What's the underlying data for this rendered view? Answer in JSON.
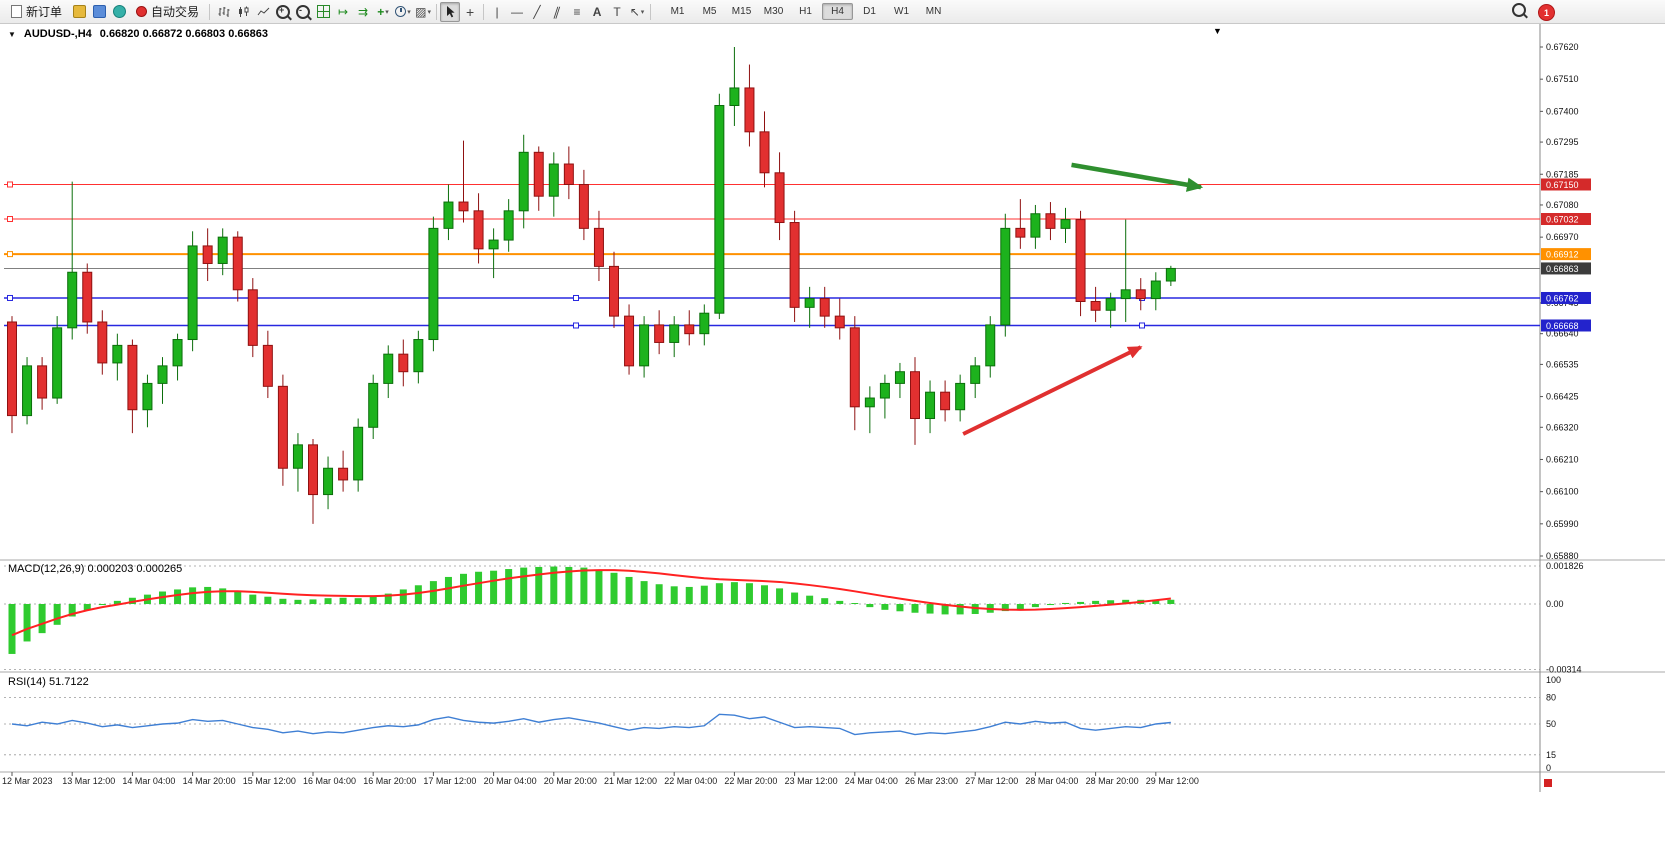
{
  "toolbar": {
    "new_order_label": "新订单",
    "auto_trading_label": "自动交易",
    "timeframes": [
      "M1",
      "M5",
      "M15",
      "M30",
      "H1",
      "H4",
      "D1",
      "W1",
      "MN"
    ],
    "active_timeframe": "H4",
    "notification_count": "1"
  },
  "chart": {
    "header_symbol": "AUDUSD-,H4",
    "header_ohlc": "0.66820 0.66872 0.66803 0.66863",
    "macd_label": "MACD(12,26,9) 0.000203 0.000265",
    "rsi_label": "RSI(14) 51.7122",
    "axis_marker_color": "#d42222"
  },
  "chart_data": {
    "type": "candlestick",
    "symbol": "AUDUSD-",
    "timeframe": "H4",
    "ylim": [
      0.6588,
      0.6762
    ],
    "colors": {
      "up": "#1db21d",
      "up_stroke": "#0b6e0b",
      "down": "#e23030",
      "down_stroke": "#8f1111",
      "macd_hist": "#2fcb2f",
      "macd_signal": "#ff2222",
      "rsi_line": "#3f7fd4",
      "current_line": "#808080"
    },
    "candles": [
      [
        0.6668,
        0.667,
        0.663,
        0.6636
      ],
      [
        0.6636,
        0.6656,
        0.6633,
        0.6653
      ],
      [
        0.6653,
        0.6656,
        0.6638,
        0.6642
      ],
      [
        0.6642,
        0.667,
        0.664,
        0.6666
      ],
      [
        0.6666,
        0.6716,
        0.6662,
        0.6685
      ],
      [
        0.6685,
        0.6688,
        0.6664,
        0.6668
      ],
      [
        0.6668,
        0.6672,
        0.665,
        0.6654
      ],
      [
        0.6654,
        0.6664,
        0.6648,
        0.666
      ],
      [
        0.666,
        0.6662,
        0.663,
        0.6638
      ],
      [
        0.6638,
        0.665,
        0.6632,
        0.6647
      ],
      [
        0.6647,
        0.6656,
        0.664,
        0.6653
      ],
      [
        0.6653,
        0.6664,
        0.6648,
        0.6662
      ],
      [
        0.6662,
        0.6699,
        0.6658,
        0.6694
      ],
      [
        0.6694,
        0.67,
        0.6682,
        0.6688
      ],
      [
        0.6688,
        0.67,
        0.6684,
        0.6697
      ],
      [
        0.6697,
        0.6699,
        0.6675,
        0.6679
      ],
      [
        0.6679,
        0.6683,
        0.6656,
        0.666
      ],
      [
        0.666,
        0.6665,
        0.6642,
        0.6646
      ],
      [
        0.6646,
        0.665,
        0.6612,
        0.6618
      ],
      [
        0.6618,
        0.663,
        0.661,
        0.6626
      ],
      [
        0.6626,
        0.6628,
        0.6599,
        0.6609
      ],
      [
        0.6609,
        0.6622,
        0.6604,
        0.6618
      ],
      [
        0.6618,
        0.6624,
        0.661,
        0.6614
      ],
      [
        0.6614,
        0.6635,
        0.661,
        0.6632
      ],
      [
        0.6632,
        0.665,
        0.6628,
        0.6647
      ],
      [
        0.6647,
        0.666,
        0.6642,
        0.6657
      ],
      [
        0.6657,
        0.6662,
        0.6646,
        0.6651
      ],
      [
        0.6651,
        0.6665,
        0.6647,
        0.6662
      ],
      [
        0.6662,
        0.6704,
        0.6658,
        0.67
      ],
      [
        0.67,
        0.6715,
        0.6696,
        0.6709
      ],
      [
        0.6709,
        0.673,
        0.6702,
        0.6706
      ],
      [
        0.6706,
        0.6712,
        0.6688,
        0.6693
      ],
      [
        0.6693,
        0.67,
        0.6683,
        0.6696
      ],
      [
        0.6696,
        0.671,
        0.6692,
        0.6706
      ],
      [
        0.6706,
        0.6732,
        0.67,
        0.6726
      ],
      [
        0.6726,
        0.6728,
        0.6706,
        0.6711
      ],
      [
        0.6711,
        0.6726,
        0.6704,
        0.6722
      ],
      [
        0.6722,
        0.6728,
        0.671,
        0.6715
      ],
      [
        0.6715,
        0.672,
        0.6696,
        0.67
      ],
      [
        0.67,
        0.6706,
        0.6682,
        0.6687
      ],
      [
        0.6687,
        0.6692,
        0.6666,
        0.667
      ],
      [
        0.667,
        0.6674,
        0.665,
        0.6653
      ],
      [
        0.6653,
        0.667,
        0.6649,
        0.6667
      ],
      [
        0.6667,
        0.6672,
        0.6657,
        0.6661
      ],
      [
        0.6661,
        0.667,
        0.6656,
        0.6667
      ],
      [
        0.6667,
        0.6672,
        0.666,
        0.6664
      ],
      [
        0.6664,
        0.6674,
        0.666,
        0.6671
      ],
      [
        0.6671,
        0.6746,
        0.6669,
        0.6742
      ],
      [
        0.6742,
        0.6762,
        0.6735,
        0.6748
      ],
      [
        0.6748,
        0.6756,
        0.6728,
        0.6733
      ],
      [
        0.6733,
        0.674,
        0.6714,
        0.6719
      ],
      [
        0.6719,
        0.6726,
        0.6696,
        0.6702
      ],
      [
        0.6702,
        0.6706,
        0.6668,
        0.6673
      ],
      [
        0.6673,
        0.668,
        0.6666,
        0.6676
      ],
      [
        0.6676,
        0.668,
        0.6666,
        0.667
      ],
      [
        0.667,
        0.6676,
        0.6662,
        0.6666
      ],
      [
        0.6666,
        0.667,
        0.6631,
        0.6639
      ],
      [
        0.6639,
        0.6646,
        0.663,
        0.6642
      ],
      [
        0.6642,
        0.665,
        0.6635,
        0.6647
      ],
      [
        0.6647,
        0.6654,
        0.6642,
        0.6651
      ],
      [
        0.6651,
        0.6656,
        0.6626,
        0.6635
      ],
      [
        0.6635,
        0.6648,
        0.663,
        0.6644
      ],
      [
        0.6644,
        0.6648,
        0.6634,
        0.6638
      ],
      [
        0.6638,
        0.665,
        0.6634,
        0.6647
      ],
      [
        0.6647,
        0.6656,
        0.6642,
        0.6653
      ],
      [
        0.6653,
        0.667,
        0.6649,
        0.6667
      ],
      [
        0.6667,
        0.6705,
        0.6663,
        0.67
      ],
      [
        0.67,
        0.671,
        0.6693,
        0.6697
      ],
      [
        0.6697,
        0.6708,
        0.6693,
        0.6705
      ],
      [
        0.6705,
        0.6709,
        0.6696,
        0.67
      ],
      [
        0.67,
        0.6707,
        0.6695,
        0.6703
      ],
      [
        0.6703,
        0.6706,
        0.667,
        0.6675
      ],
      [
        0.6675,
        0.668,
        0.6668,
        0.6672
      ],
      [
        0.6672,
        0.6678,
        0.6666,
        0.6676
      ],
      [
        0.6676,
        0.6703,
        0.6668,
        0.6679
      ],
      [
        0.6679,
        0.6683,
        0.6672,
        0.6676
      ],
      [
        0.6676,
        0.6685,
        0.6672,
        0.6682
      ],
      [
        0.6682,
        0.66872,
        0.66803,
        0.66863
      ]
    ],
    "x_labels": [
      "12 Mar 2023",
      "13 Mar 12:00",
      "14 Mar 04:00",
      "14 Mar 20:00",
      "15 Mar 12:00",
      "16 Mar 04:00",
      "16 Mar 20:00",
      "17 Mar 12:00",
      "20 Mar 04:00",
      "20 Mar 20:00",
      "21 Mar 12:00",
      "22 Mar 04:00",
      "22 Mar 20:00",
      "23 Mar 12:00",
      "24 Mar 04:00",
      "26 Mar 23:00",
      "27 Mar 12:00",
      "28 Mar 04:00",
      "28 Mar 20:00",
      "29 Mar 12:00"
    ],
    "y_ticks": [
      0.6762,
      0.6751,
      0.674,
      0.67295,
      0.67185,
      0.6708,
      0.6697,
      0.66745,
      0.6664,
      0.66535,
      0.66425,
      0.6632,
      0.6621,
      0.661,
      0.6599,
      0.6588
    ],
    "hlines": [
      {
        "price": 0.6715,
        "color": "#ff3030",
        "width": 1,
        "badge": "0.67150",
        "badge_color": "#d42a2a",
        "handles": false
      },
      {
        "price": 0.67032,
        "color": "#ff3030",
        "width": 1,
        "badge": "0.67032",
        "badge_color": "#d42a2a",
        "handles": false
      },
      {
        "price": 0.66912,
        "color": "#ff9100",
        "width": 2,
        "badge": "0.66912",
        "badge_color": "#ff9100",
        "handles": false
      },
      {
        "price": 0.66762,
        "color": "#2828e0",
        "width": 1.5,
        "badge": "0.66762",
        "badge_color": "#2323cc",
        "handles": true
      },
      {
        "price": 0.66668,
        "color": "#2828e0",
        "width": 1.5,
        "badge": "0.66668",
        "badge_color": "#2323cc",
        "handles": true
      }
    ],
    "current_price": {
      "price": 0.66863,
      "badge": "0.66863",
      "badge_color": "#3c3c3c"
    },
    "arrows": [
      {
        "name": "green-arrow",
        "color": "#2f8f2f",
        "width": 4.5,
        "from": {
          "i": 70.4,
          "p": 0.67217
        },
        "to": {
          "i": 79.0,
          "p": 0.67141
        }
      },
      {
        "name": "red-arrow",
        "color": "#e03030",
        "width": 4,
        "from": {
          "i": 63.2,
          "p": 0.66297
        },
        "to": {
          "i": 75.0,
          "p": 0.66594
        }
      }
    ],
    "macd": {
      "params": "12,26,9",
      "values": [
        0.000203,
        0.000265
      ],
      "scale": [
        {
          "label": "0.001826",
          "v": 0.001826
        },
        {
          "label": "0.00",
          "v": 0
        },
        {
          "label": "-0.00314",
          "v": -0.00314
        }
      ],
      "histogram": [
        -0.0024,
        -0.0018,
        -0.0014,
        -0.001,
        -0.0006,
        -0.0003,
        -5e-05,
        0.00015,
        0.0003,
        0.00045,
        0.0006,
        0.0007,
        0.0008,
        0.00082,
        0.00075,
        0.0006,
        0.00045,
        0.00035,
        0.00025,
        0.0002,
        0.00022,
        0.00028,
        0.0003,
        0.00028,
        0.00035,
        0.0005,
        0.0007,
        0.0009,
        0.0011,
        0.0013,
        0.00145,
        0.00155,
        0.0016,
        0.00168,
        0.00175,
        0.00178,
        0.0018,
        0.00178,
        0.00175,
        0.00165,
        0.0015,
        0.0013,
        0.0011,
        0.00095,
        0.00085,
        0.00082,
        0.00088,
        0.001,
        0.00105,
        0.001,
        0.0009,
        0.00075,
        0.00055,
        0.0004,
        0.00028,
        0.00015,
        0,
        -0.00015,
        -0.00028,
        -0.00035,
        -0.00042,
        -0.00046,
        -0.0005,
        -0.0005,
        -0.00048,
        -0.00042,
        -0.00034,
        -0.00025,
        -0.00015,
        -5e-05,
        5e-05,
        0.0001,
        0.00015,
        0.00018,
        0.0002,
        0.0002,
        0.0002,
        0.000203
      ],
      "signal": [
        -0.0015,
        -0.0012,
        -0.00095,
        -0.0007,
        -0.00048,
        -0.0003,
        -0.00015,
        -3e-05,
        0.0001,
        0.00022,
        0.00033,
        0.00043,
        0.00052,
        0.00058,
        0.00061,
        0.00061,
        0.00058,
        0.00054,
        0.00049,
        0.00045,
        0.00042,
        0.0004,
        0.00039,
        0.00038,
        0.00038,
        0.0004,
        0.00045,
        0.00053,
        0.00063,
        0.00075,
        0.00088,
        0.001,
        0.00112,
        0.00123,
        0.00133,
        0.00142,
        0.0015,
        0.00156,
        0.00161,
        0.00163,
        0.00163,
        0.0016,
        0.00154,
        0.00147,
        0.00139,
        0.00131,
        0.00124,
        0.00119,
        0.00116,
        0.00113,
        0.0011,
        0.00106,
        0.00099,
        0.00091,
        0.00082,
        0.00072,
        0.00061,
        0.00049,
        0.00037,
        0.00026,
        0.00015,
        5e-05,
        -4e-05,
        -0.00012,
        -0.00019,
        -0.00024,
        -0.00027,
        -0.00028,
        -0.00027,
        -0.00024,
        -0.0002,
        -0.00015,
        -9e-05,
        -3e-05,
        3e-05,
        0.0001,
        0.00018,
        0.000265
      ]
    },
    "rsi": {
      "period": 14,
      "value": 51.7122,
      "levels": [
        80,
        50,
        15
      ],
      "scale": [
        {
          "label": "100",
          "v": 100
        },
        {
          "label": "80",
          "v": 80
        },
        {
          "label": "50",
          "v": 50
        },
        {
          "label": "15",
          "v": 15
        },
        {
          "label": "0",
          "v": 0
        }
      ],
      "values": [
        50,
        48,
        52,
        50,
        54,
        51,
        47,
        49,
        46,
        48,
        50,
        51,
        55,
        53,
        54,
        50,
        46,
        44,
        40,
        42,
        39,
        41,
        40,
        43,
        46,
        48,
        47,
        49,
        55,
        58,
        54,
        52,
        51,
        53,
        56,
        52,
        55,
        57,
        54,
        51,
        47,
        43,
        46,
        45,
        47,
        46,
        48,
        61,
        60,
        56,
        58,
        52,
        46,
        47,
        46,
        45,
        38,
        40,
        41,
        42,
        38,
        40,
        39,
        41,
        43,
        47,
        52,
        50,
        53,
        51,
        52,
        45,
        43,
        45,
        47,
        46,
        50,
        51.7122
      ]
    }
  }
}
